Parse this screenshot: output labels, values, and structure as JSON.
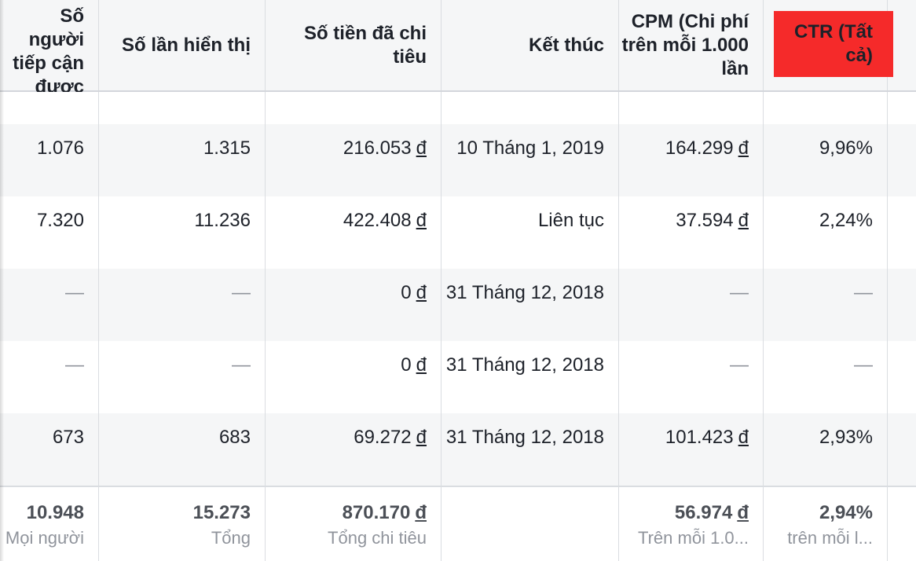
{
  "columns": [
    "Số người tiếp cận được",
    "Số lần hiển thị",
    "Số tiền đã chi tiêu",
    "Kết thúc",
    "CPM (Chi phí trên mỗi 1.000 lần",
    "CTR (Tất cả)"
  ],
  "currency": "đ",
  "dash": "—",
  "rows": [
    {
      "reach": "1.076",
      "impressions": "1.315",
      "spent": "216.053",
      "end": "10 Tháng 1, 2019",
      "cpm": "164.299",
      "ctr": "9,96%"
    },
    {
      "reach": "7.320",
      "impressions": "11.236",
      "spent": "422.408",
      "end": "Liên tục",
      "cpm": "37.594",
      "ctr": "2,24%"
    },
    {
      "reach": "—",
      "impressions": "—",
      "spent": "0",
      "end": "31 Tháng 12, 2018",
      "cpm": "—",
      "ctr": "—"
    },
    {
      "reach": "—",
      "impressions": "—",
      "spent": "0",
      "end": "31 Tháng 12, 2018",
      "cpm": "—",
      "ctr": "—"
    },
    {
      "reach": "673",
      "impressions": "683",
      "spent": "69.272",
      "end": "31 Tháng 12, 2018",
      "cpm": "101.423",
      "ctr": "2,93%"
    }
  ],
  "totals": {
    "reach": {
      "value": "10.948",
      "sub": "Mọi người"
    },
    "impressions": {
      "value": "15.273",
      "sub": "Tổng"
    },
    "spent": {
      "value": "870.170",
      "sub": "Tổng chi tiêu"
    },
    "cpm": {
      "value": "56.974",
      "sub": "Trên mỗi 1.0..."
    },
    "ctr": {
      "value": "2,94%",
      "sub": "trên mỗi l..."
    }
  },
  "highlight_color": "#f52a2a"
}
